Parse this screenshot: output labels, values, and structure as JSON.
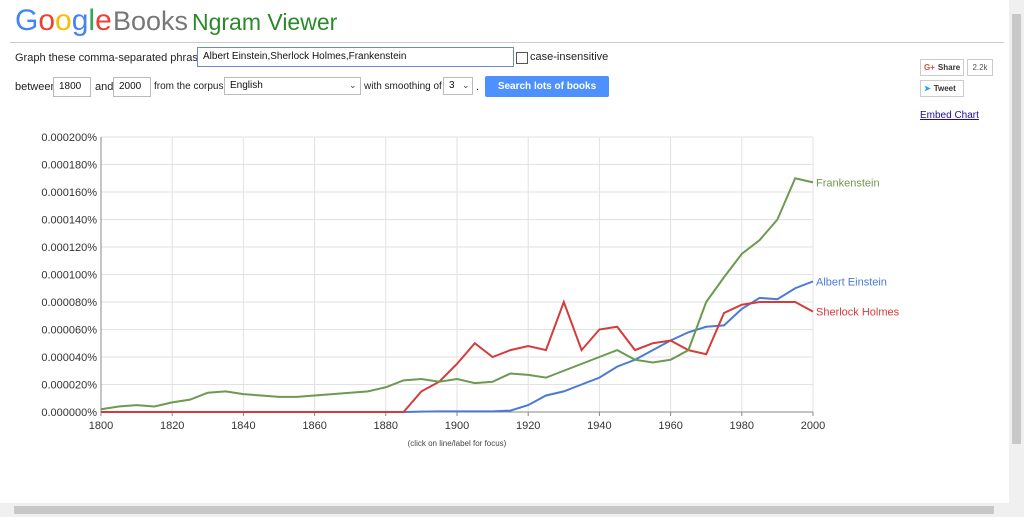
{
  "header": {
    "logo_google": "Google",
    "logo_books": "Books",
    "title": "Ngram Viewer"
  },
  "form": {
    "phrases_label": "Graph these comma-separated phrases:",
    "phrases_value": "Albert Einstein,Sherlock Holmes,Frankenstein",
    "case_insensitive": "case-insensitive",
    "between": "between",
    "start_year": "1800",
    "and": "and",
    "end_year": "2000",
    "corpus_label": "from the corpus",
    "corpus": "English",
    "smoothing_label": "with smoothing of",
    "smoothing": "3",
    "period": ".",
    "search_button": "Search lots of books"
  },
  "social": {
    "share": "Share",
    "share_count": "2.2k",
    "tweet": "Tweet",
    "embed": "Embed Chart"
  },
  "chart_data": {
    "type": "line",
    "note": "(click on line/label for focus)",
    "x": [
      1800,
      1805,
      1810,
      1815,
      1820,
      1825,
      1830,
      1835,
      1840,
      1845,
      1850,
      1855,
      1860,
      1865,
      1870,
      1875,
      1880,
      1885,
      1890,
      1895,
      1900,
      1905,
      1910,
      1915,
      1920,
      1925,
      1930,
      1935,
      1940,
      1945,
      1950,
      1955,
      1960,
      1965,
      1970,
      1975,
      1980,
      1985,
      1990,
      1995,
      2000
    ],
    "series": [
      {
        "name": "Albert Einstein",
        "color": "#4a7bd4",
        "values": [
          0,
          0,
          0,
          0,
          0,
          0,
          0,
          0,
          0,
          0,
          0,
          0,
          0,
          0,
          0,
          0,
          0,
          0,
          3e-07,
          5e-07,
          5e-07,
          5e-07,
          5e-07,
          1e-06,
          5e-06,
          1.2e-05,
          1.5e-05,
          2e-05,
          2.5e-05,
          3.3e-05,
          3.8e-05,
          4.5e-05,
          5.2e-05,
          5.8e-05,
          6.2e-05,
          6.3e-05,
          7.5e-05,
          8.3e-05,
          8.2e-05,
          9e-05,
          9.5e-05
        ]
      },
      {
        "name": "Sherlock Holmes",
        "color": "#d43c3c",
        "values": [
          0,
          0,
          0,
          0,
          0,
          0,
          0,
          0,
          0,
          0,
          0,
          0,
          0,
          0,
          0,
          0,
          0,
          0,
          1.5e-05,
          2.2e-05,
          3.5e-05,
          5e-05,
          4e-05,
          4.5e-05,
          4.8e-05,
          4.5e-05,
          8e-05,
          4.5e-05,
          6e-05,
          6.2e-05,
          4.5e-05,
          5e-05,
          5.2e-05,
          4.5e-05,
          4.2e-05,
          7.2e-05,
          7.8e-05,
          8e-05,
          8e-05,
          8e-05,
          7.3e-05
        ]
      },
      {
        "name": "Frankenstein",
        "color": "#6b9a50",
        "values": [
          2e-06,
          4e-06,
          5e-06,
          4e-06,
          7e-06,
          9e-06,
          1.4e-05,
          1.5e-05,
          1.3e-05,
          1.2e-05,
          1.1e-05,
          1.1e-05,
          1.2e-05,
          1.3e-05,
          1.4e-05,
          1.5e-05,
          1.8e-05,
          2.3e-05,
          2.4e-05,
          2.2e-05,
          2.4e-05,
          2.1e-05,
          2.2e-05,
          2.8e-05,
          2.7e-05,
          2.5e-05,
          3e-05,
          3.5e-05,
          4e-05,
          4.5e-05,
          3.8e-05,
          3.6e-05,
          3.8e-05,
          4.5e-05,
          8e-05,
          9.8e-05,
          0.000115,
          0.000125,
          0.00014,
          0.00017,
          0.000167
        ]
      }
    ],
    "xlim": [
      1800,
      2000
    ],
    "xticks": [
      1800,
      1820,
      1840,
      1860,
      1880,
      1900,
      1920,
      1940,
      1960,
      1980,
      2000
    ],
    "ylim": [
      0,
      0.0002
    ],
    "yticks": [
      {
        "value": 0,
        "label": "0.000000%"
      },
      {
        "value": 2e-05,
        "label": "0.000020%"
      },
      {
        "value": 4e-05,
        "label": "0.000040%"
      },
      {
        "value": 6e-05,
        "label": "0.000060%"
      },
      {
        "value": 8e-05,
        "label": "0.000080%"
      },
      {
        "value": 0.0001,
        "label": "0.000100%"
      },
      {
        "value": 0.00012,
        "label": "0.000120%"
      },
      {
        "value": 0.00014,
        "label": "0.000140%"
      },
      {
        "value": 0.00016,
        "label": "0.000160%"
      },
      {
        "value": 0.00018,
        "label": "0.000180%"
      },
      {
        "value": 0.0002,
        "label": "0.000200%"
      }
    ],
    "grid": true
  }
}
